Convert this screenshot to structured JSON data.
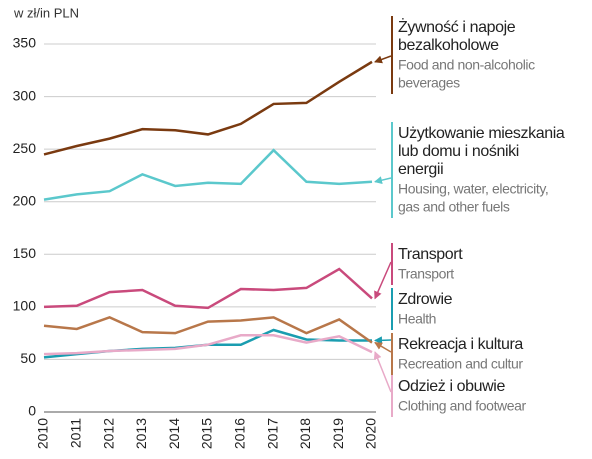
{
  "chart_data": {
    "type": "line",
    "y_label": "w zł/in PLN",
    "x": [
      "2010",
      "2011",
      "2012",
      "2013",
      "2014",
      "2015",
      "2016",
      "2017",
      "2018",
      "2019",
      "2020"
    ],
    "ylim": [
      0,
      350
    ],
    "yticks": [
      0,
      50,
      100,
      150,
      200,
      250,
      300,
      350
    ],
    "grid": true,
    "series": [
      {
        "name": [
          "Żywność i napoje",
          "bezalkoholowe"
        ],
        "name_en": [
          "Food and non-alcoholic",
          "beverages"
        ],
        "color": "#7a3a10",
        "values": [
          245,
          253,
          260,
          269,
          268,
          264,
          274,
          293,
          294,
          314,
          333
        ]
      },
      {
        "name": [
          "Użytkowanie mieszkania",
          "lub domu i nośniki",
          "energii"
        ],
        "name_en": [
          "Housing, water, electricity,",
          "gas and other fuels"
        ],
        "color": "#5bc8cc",
        "values": [
          202,
          207,
          210,
          226,
          215,
          218,
          217,
          249,
          219,
          217,
          219
        ]
      },
      {
        "name": [
          "Transport"
        ],
        "name_en": [
          "Transport"
        ],
        "color": "#c94a7c",
        "values": [
          100,
          101,
          114,
          116,
          101,
          99,
          117,
          116,
          118,
          136,
          108
        ]
      },
      {
        "name": [
          "Zdrowie"
        ],
        "name_en": [
          "Health"
        ],
        "color": "#1a9db0",
        "values": [
          52,
          55,
          58,
          60,
          61,
          64,
          64,
          78,
          69,
          68,
          68
        ]
      },
      {
        "name": [
          "Rekreacja i kultura"
        ],
        "name_en": [
          "Recreation and cultur"
        ],
        "color": "#b8774a",
        "values": [
          82,
          79,
          90,
          76,
          75,
          86,
          87,
          90,
          75,
          88,
          66
        ]
      },
      {
        "name": [
          "Odzież i obuwie"
        ],
        "name_en": [
          "Clothing and footwear"
        ],
        "color": "#e8aac8",
        "values": [
          55,
          56,
          58,
          59,
          60,
          64,
          73,
          73,
          66,
          72,
          57
        ]
      }
    ]
  }
}
